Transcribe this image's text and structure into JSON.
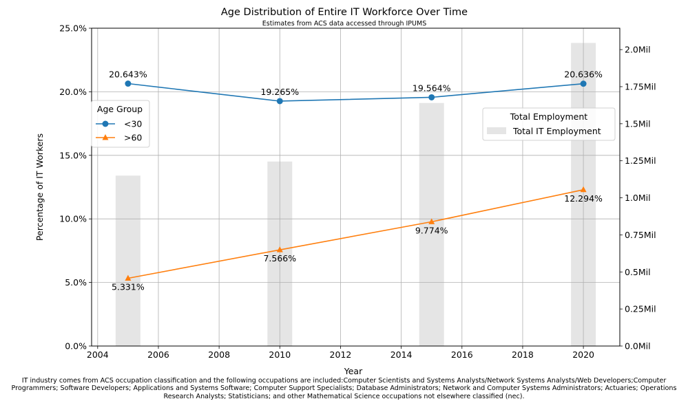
{
  "chart_data": {
    "type": "line",
    "title": "Age Distribution of Entire IT Workforce Over Time",
    "subtitle": "Estimates from ACS data accessed through IPUMS",
    "xlabel": "Year",
    "ylabel": "Percentage of IT Workers",
    "x": [
      2005,
      2010,
      2015,
      2020
    ],
    "xlim": [
      2003.8,
      2021.2
    ],
    "x_ticks": [
      "2004",
      "2006",
      "2008",
      "2010",
      "2012",
      "2014",
      "2016",
      "2018",
      "2020"
    ],
    "ylim": [
      0,
      25
    ],
    "y_ticks": [
      "0.0%",
      "5.0%",
      "10.0%",
      "15.0%",
      "20.0%",
      "25.0%"
    ],
    "y2lim": [
      0,
      2.1445
    ],
    "y2_ticks": [
      "0.0Mil",
      "0.25Mil",
      "0.5Mil",
      "0.75Mil",
      "1.0Mil",
      "1.25Mil",
      "1.5Mil",
      "1.75Mil",
      "2.0Mil"
    ],
    "grid": true,
    "series": [
      {
        "name": "<30",
        "marker": "circle",
        "color": "#1f77b4",
        "values": [
          20.643,
          19.265,
          19.564,
          20.636
        ],
        "labels": [
          "20.643%",
          "19.265%",
          "19.564%",
          "20.636%"
        ]
      },
      {
        "name": ">60",
        "marker": "triangle",
        "color": "#ff7f0e",
        "values": [
          5.331,
          7.566,
          9.774,
          12.294
        ],
        "labels": [
          "5.331%",
          "7.566%",
          "9.774%",
          "12.294%"
        ]
      }
    ],
    "bars": {
      "name": "Total IT Employment",
      "color": "#e5e5e5",
      "axis": "right",
      "values": [
        1.15,
        1.245,
        1.64,
        2.045
      ]
    },
    "legend_left": {
      "title": "Age Group",
      "placement": "center-left"
    },
    "legend_right": {
      "title": "Total Employment",
      "placement": "center-right"
    }
  },
  "caption": "IT industry comes from ACS occupation classification and the following occupations are included:Computer Scientists and Systems Analysts/Network Systems Analysts/Web Developers;Computer Programmers; Software Developers; Applications and Systems Software; Computer Support Specialists; Database Administrators; Network and Computer Systems Administrators; Actuaries; Operations Research Analysts; Statisticians; and other Mathematical Science occupations not elsewhere classified (nec)."
}
